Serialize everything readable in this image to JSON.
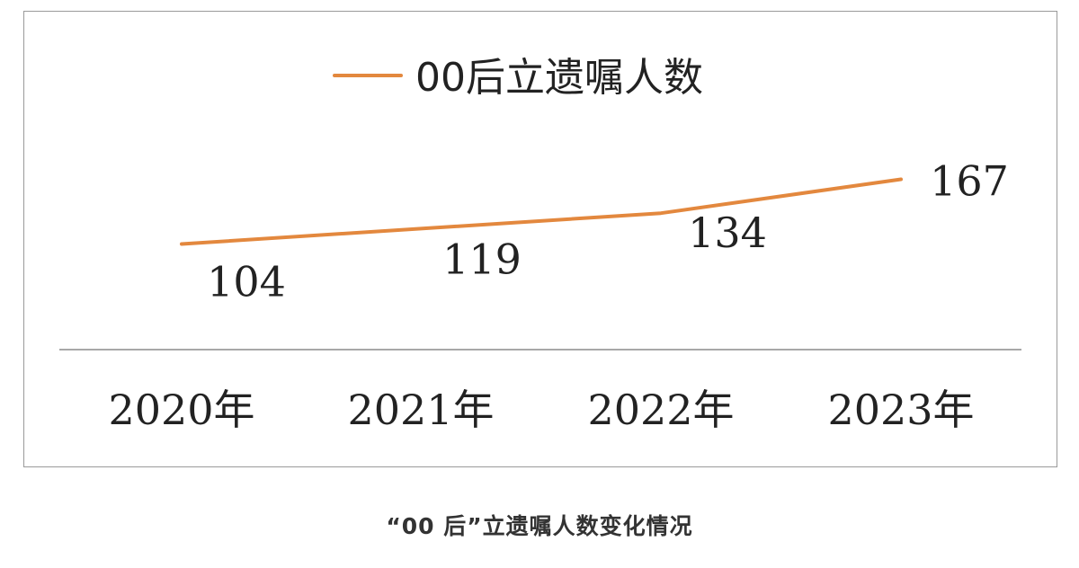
{
  "colors": {
    "line": "#E3883E",
    "axis": "#8c8c8c",
    "text": "#222222",
    "frame": "#9a9a9a"
  },
  "caption": "“00 后”立遗嘱人数变化情况",
  "chart_data": {
    "type": "line",
    "title": "",
    "xlabel": "",
    "ylabel": "",
    "categories": [
      "2020年",
      "2021年",
      "2022年",
      "2023年"
    ],
    "series": [
      {
        "name": "00后立遗嘱人数",
        "values": [
          104,
          119,
          134,
          167
        ]
      }
    ],
    "data_labels": [
      "104",
      "119",
      "134",
      "167"
    ],
    "legend": "top-center",
    "grid": false
  }
}
